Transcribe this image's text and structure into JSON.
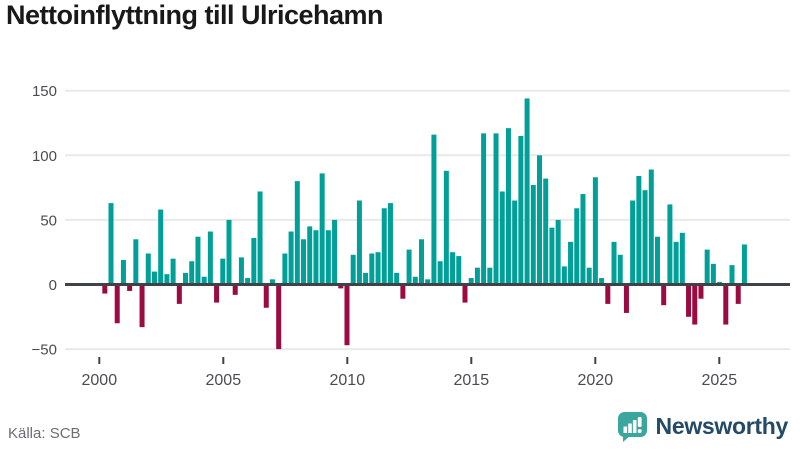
{
  "title": "Nettoinflyttning till Ulricehamn",
  "source": "Källa: SCB",
  "brand": {
    "name": "Newsworthy",
    "icon": "bar-chart-speech-bubble-icon"
  },
  "colors": {
    "positive": "#00a099",
    "negative": "#9b0a41",
    "grid": "#e9e9e9",
    "axis": "#3f4246",
    "tick_label": "#4c4d52",
    "title": "#191919",
    "source": "#6d6d76",
    "brand_text": "#234b68",
    "brand_icon": "#3aa69e"
  },
  "chart_data": {
    "type": "bar",
    "title": "Nettoinflyttning till Ulricehamn",
    "categories": [
      "2000Q1",
      "2000Q2",
      "2000Q3",
      "2000Q4",
      "2001Q1",
      "2001Q2",
      "2001Q3",
      "2001Q4",
      "2002Q1",
      "2002Q2",
      "2002Q3",
      "2002Q4",
      "2003Q1",
      "2003Q2",
      "2003Q3",
      "2003Q4",
      "2004Q1",
      "2004Q2",
      "2004Q3",
      "2004Q4",
      "2005Q1",
      "2005Q2",
      "2005Q3",
      "2005Q4",
      "2006Q1",
      "2006Q2",
      "2006Q3",
      "2006Q4",
      "2007Q1",
      "2007Q2",
      "2007Q3",
      "2007Q4",
      "2008Q1",
      "2008Q2",
      "2008Q3",
      "2008Q4",
      "2009Q1",
      "2009Q2",
      "2009Q3",
      "2009Q4",
      "2010Q1",
      "2010Q2",
      "2010Q3",
      "2010Q4",
      "2011Q1",
      "2011Q2",
      "2011Q3",
      "2011Q4",
      "2012Q1",
      "2012Q2",
      "2012Q3",
      "2012Q4",
      "2013Q1",
      "2013Q2",
      "2013Q3",
      "2013Q4",
      "2014Q1",
      "2014Q2",
      "2014Q3",
      "2014Q4",
      "2015Q1",
      "2015Q2",
      "2015Q3",
      "2015Q4",
      "2016Q1",
      "2016Q2",
      "2016Q3",
      "2016Q4",
      "2017Q1",
      "2017Q2",
      "2017Q3",
      "2017Q4",
      "2018Q1",
      "2018Q2",
      "2018Q3",
      "2018Q4",
      "2019Q1",
      "2019Q2",
      "2019Q3",
      "2019Q4",
      "2020Q1",
      "2020Q2",
      "2020Q3",
      "2020Q4",
      "2021Q1",
      "2021Q2",
      "2021Q3",
      "2021Q4",
      "2022Q1",
      "2022Q2",
      "2022Q3",
      "2022Q4",
      "2023Q1",
      "2023Q2",
      "2023Q3",
      "2023Q4",
      "2024Q1",
      "2024Q2",
      "2024Q3",
      "2024Q4",
      "2025Q1",
      "2025Q2",
      "2025Q3",
      "2025Q4"
    ],
    "values": [
      -7,
      63,
      -30,
      19,
      -5,
      35,
      -33,
      24,
      10,
      58,
      8,
      20,
      -15,
      9,
      18,
      37,
      6,
      41,
      -14,
      20,
      50,
      -8,
      21,
      5,
      36,
      72,
      -18,
      4,
      -50,
      24,
      41,
      80,
      35,
      45,
      42,
      86,
      42,
      50,
      -3,
      -47,
      23,
      65,
      9,
      24,
      25,
      59,
      63,
      9,
      -11,
      27,
      6,
      35,
      4,
      116,
      18,
      88,
      25,
      22,
      -14,
      5,
      13,
      117,
      13,
      117,
      72,
      121,
      65,
      115,
      144,
      77,
      100,
      82,
      44,
      50,
      14,
      33,
      59,
      70,
      13,
      83,
      5,
      -15,
      33,
      23,
      -22,
      65,
      84,
      73,
      89,
      37,
      -16,
      62,
      33,
      40,
      -25,
      -31,
      -11,
      27,
      16,
      2,
      -31,
      15,
      -15,
      31
    ],
    "xlabel": "",
    "ylabel": "",
    "ylim": [
      -50,
      150
    ],
    "y_ticks": [
      150,
      100,
      50,
      0,
      -50
    ],
    "y_tick_labels": [
      "150",
      "100",
      "50",
      "0",
      "−50"
    ],
    "x_ticks": [
      2000,
      2005,
      2010,
      2015,
      2020,
      2025
    ],
    "x_tick_labels": [
      "2000",
      "2005",
      "2010",
      "2015",
      "2020",
      "2025"
    ],
    "grid": true,
    "legend": false,
    "positive_color": "#00a099",
    "negative_color": "#9b0a41"
  }
}
